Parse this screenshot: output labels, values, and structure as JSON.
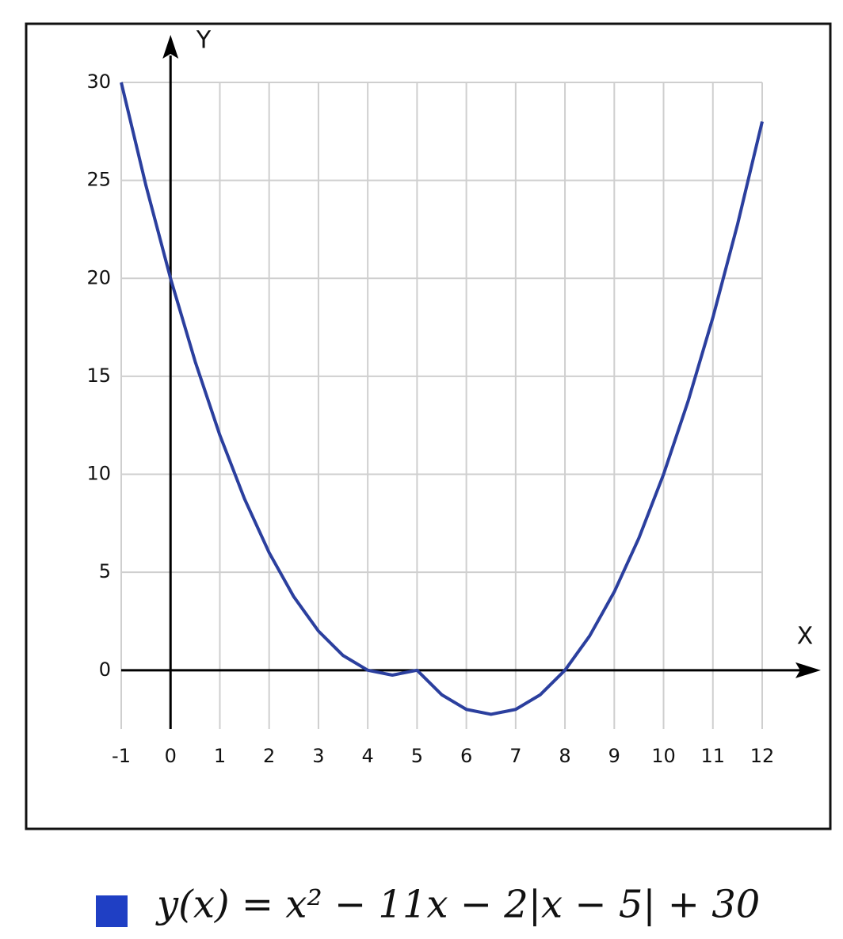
{
  "chart_data": {
    "type": "line",
    "x_label": "X",
    "y_label": "Y",
    "x": [
      -1,
      -0.5,
      0,
      0.5,
      1,
      1.5,
      2,
      2.5,
      3,
      3.5,
      4,
      4.5,
      5,
      5.5,
      6,
      6.5,
      7,
      7.5,
      8,
      8.5,
      9,
      9.5,
      10,
      10.5,
      11,
      11.5,
      12
    ],
    "series": [
      {
        "name": "y(x) = x² − 11x − 2|x − 5| + 30",
        "color": "#2b3f9e",
        "values": [
          30,
          24.75,
          20,
          15.75,
          12,
          8.75,
          6,
          3.75,
          2,
          0.75,
          0,
          -0.25,
          0,
          -1.25,
          -2,
          -2.25,
          -2,
          -1.25,
          0,
          1.75,
          4,
          6.75,
          10,
          13.75,
          18,
          22.75,
          28
        ]
      }
    ],
    "legend_color": "#1f3fc4",
    "xlim": [
      -1,
      12
    ],
    "ylim": [
      -3,
      30
    ],
    "xticks": [
      -1,
      0,
      1,
      2,
      3,
      4,
      5,
      6,
      7,
      8,
      9,
      10,
      11,
      12
    ],
    "yticks": [
      0,
      5,
      10,
      15,
      20,
      25,
      30
    ],
    "grid": true
  }
}
